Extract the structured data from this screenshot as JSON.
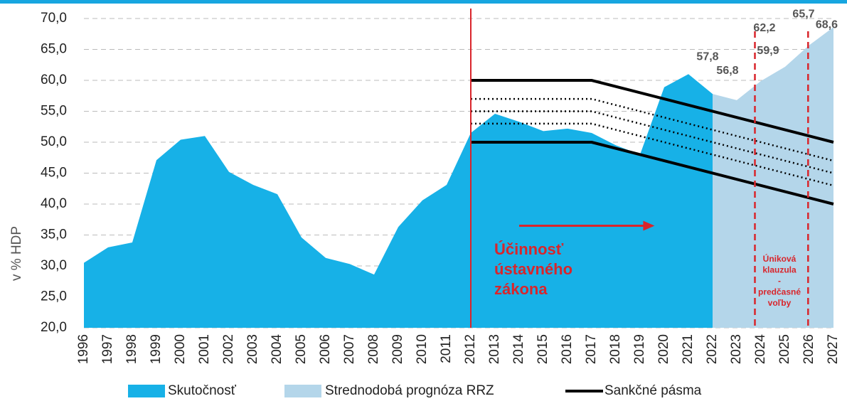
{
  "chart_data": {
    "type": "area",
    "y_label": "v % HDP",
    "x": [
      1996,
      1997,
      1998,
      1999,
      2000,
      2001,
      2002,
      2003,
      2004,
      2005,
      2006,
      2007,
      2008,
      2009,
      2010,
      2011,
      2012,
      2013,
      2014,
      2015,
      2016,
      2017,
      2018,
      2019,
      2020,
      2021,
      2022,
      2023,
      2024,
      2025,
      2026,
      2027
    ],
    "xlim": [
      1996,
      2027
    ],
    "ylim": [
      20,
      70
    ],
    "yticks": [
      {
        "value": 20,
        "label": "20,0"
      },
      {
        "value": 25,
        "label": "25,0"
      },
      {
        "value": 30,
        "label": "30,0"
      },
      {
        "value": 35,
        "label": "35,0"
      },
      {
        "value": 40,
        "label": "40,0"
      },
      {
        "value": 45,
        "label": "45,0"
      },
      {
        "value": 50,
        "label": "50,0"
      },
      {
        "value": 55,
        "label": "55,0"
      },
      {
        "value": 60,
        "label": "60,0"
      },
      {
        "value": 65,
        "label": "65,0"
      },
      {
        "value": 70,
        "label": "70,0"
      }
    ],
    "grid": true,
    "series": [
      {
        "name": "Skutočnosť",
        "color": "#17b1e7",
        "values": [
          30.5,
          33.0,
          33.8,
          47.1,
          50.4,
          51.0,
          45.2,
          43.1,
          41.6,
          34.6,
          31.3,
          30.3,
          28.6,
          36.3,
          40.6,
          43.1,
          51.5,
          54.6,
          53.3,
          51.8,
          52.2,
          51.5,
          49.5,
          48.0,
          58.9,
          61.0,
          57.8,
          null,
          null,
          null,
          null,
          null
        ]
      },
      {
        "name": "Strednodobá prognóza RRZ",
        "color": "#b4d6ea",
        "values": [
          null,
          null,
          null,
          null,
          null,
          null,
          null,
          null,
          null,
          null,
          null,
          null,
          null,
          null,
          null,
          null,
          null,
          null,
          null,
          null,
          null,
          null,
          null,
          null,
          null,
          null,
          57.8,
          56.8,
          59.9,
          62.2,
          65.7,
          68.6
        ],
        "value_labels": [
          null,
          null,
          null,
          null,
          null,
          null,
          null,
          null,
          null,
          null,
          null,
          null,
          null,
          null,
          null,
          null,
          null,
          null,
          null,
          null,
          null,
          null,
          null,
          null,
          null,
          null,
          "57,8",
          "56,8",
          "59,9",
          "62,2",
          "65,7",
          "68,6"
        ]
      }
    ],
    "sanction_bands": {
      "name": "Sankčné pásma",
      "color": "#000000",
      "lines": [
        {
          "style": "solid",
          "values": [
            null,
            null,
            null,
            null,
            null,
            null,
            null,
            null,
            null,
            null,
            null,
            null,
            null,
            null,
            null,
            null,
            60,
            null,
            null,
            null,
            null,
            60,
            null,
            null,
            null,
            null,
            null,
            null,
            null,
            null,
            null,
            50
          ]
        },
        {
          "style": "dotted",
          "values": [
            null,
            null,
            null,
            null,
            null,
            null,
            null,
            null,
            null,
            null,
            null,
            null,
            null,
            null,
            null,
            null,
            57,
            null,
            null,
            null,
            null,
            57,
            null,
            null,
            null,
            null,
            null,
            null,
            null,
            null,
            null,
            47
          ]
        },
        {
          "style": "dotted",
          "values": [
            null,
            null,
            null,
            null,
            null,
            null,
            null,
            null,
            null,
            null,
            null,
            null,
            null,
            null,
            null,
            null,
            55,
            null,
            null,
            null,
            null,
            55,
            null,
            null,
            null,
            null,
            null,
            null,
            null,
            null,
            null,
            45
          ]
        },
        {
          "style": "dotted",
          "values": [
            null,
            null,
            null,
            null,
            null,
            null,
            null,
            null,
            null,
            null,
            null,
            null,
            null,
            null,
            null,
            null,
            53,
            null,
            null,
            null,
            null,
            53,
            null,
            null,
            null,
            null,
            null,
            null,
            null,
            null,
            null,
            43
          ]
        },
        {
          "style": "solid",
          "values": [
            null,
            null,
            null,
            null,
            null,
            null,
            null,
            null,
            null,
            null,
            null,
            null,
            null,
            null,
            null,
            null,
            50,
            null,
            null,
            null,
            null,
            50,
            null,
            null,
            null,
            null,
            null,
            null,
            null,
            null,
            null,
            40
          ]
        }
      ]
    },
    "vlines": [
      {
        "x": 2012,
        "color": "#d9252b",
        "style": "solid"
      },
      {
        "x": 2023.75,
        "color": "#d9252b",
        "style": "dashed"
      },
      {
        "x": 2025.95,
        "color": "#d9252b",
        "style": "dashed"
      }
    ],
    "annotations": [
      {
        "lines": [
          "Účinnosť",
          "ústavného",
          "zákona"
        ],
        "color": "#d9252b"
      },
      {
        "lines": [
          "Úniková",
          "klauzula",
          "-",
          "predčasné",
          "voľby"
        ],
        "color": "#d9252b"
      }
    ],
    "arrow": {
      "x": [
        2014,
        2019.6
      ],
      "y": 36.5,
      "color": "#d9252b"
    }
  }
}
